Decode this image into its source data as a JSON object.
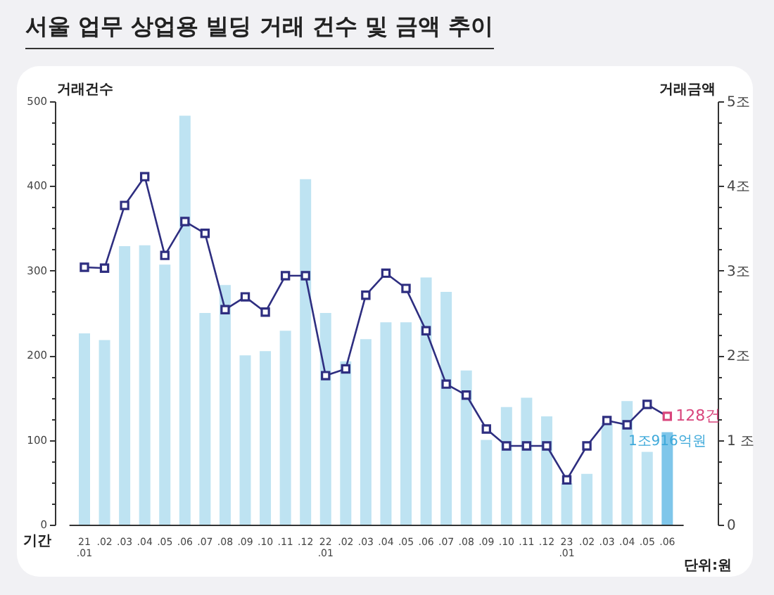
{
  "chart_data": {
    "type": "bar",
    "title": "서울 업무 상업용 빌딩 거래 건수 및 금액 추이",
    "xlabel": "기간",
    "ylabel": "거래건수",
    "y2label": "거래금액",
    "categories": [
      "21\n.01",
      ".02",
      ".03",
      ".04",
      ".05",
      ".06",
      ".07",
      ".08",
      ".09",
      ".10",
      ".11",
      ".12",
      "22\n.01",
      ".02",
      ".03",
      ".04",
      ".05",
      ".06",
      ".07",
      ".08",
      ".09",
      ".10",
      ".11",
      ".12",
      "23\n.01",
      ".02",
      ".03",
      ".04",
      ".05",
      ".06"
    ],
    "series": [
      {
        "axis": "y2",
        "colors": [
          "#bee3f2",
          "#bee3f2",
          "#bee3f2",
          "#bee3f2",
          "#bee3f2",
          "#bee3f2",
          "#bee3f2",
          "#bee3f2",
          "#bee3f2",
          "#bee3f2",
          "#bee3f2",
          "#bee3f2",
          "#bee3f2",
          "#bee3f2",
          "#bee3f2",
          "#bee3f2",
          "#bee3f2",
          "#bee3f2",
          "#bee3f2",
          "#bee3f2",
          "#bee3f2",
          "#bee3f2",
          "#bee3f2",
          "#bee3f2",
          "#bee3f2",
          "#bee3f2",
          "#bee3f2",
          "#bee3f2",
          "#bee3f2",
          "#7fc6ea"
        ],
        "values": [
          2.26,
          2.18,
          3.29,
          3.3,
          3.07,
          4.83,
          2.5,
          2.83,
          2.0,
          2.05,
          2.29,
          4.08,
          2.5,
          1.93,
          2.19,
          2.39,
          2.39,
          2.92,
          2.75,
          1.82,
          1.0,
          1.39,
          1.5,
          1.28,
          0.49,
          0.6,
          1.2,
          1.46,
          0.86,
          1.0916
        ],
        "value_labels": [
          null,
          null,
          null,
          null,
          null,
          null,
          null,
          null,
          null,
          null,
          null,
          null,
          null,
          null,
          null,
          null,
          null,
          null,
          null,
          null,
          null,
          null,
          null,
          null,
          null,
          null,
          null,
          null,
          null,
          "1조916억원"
        ]
      },
      {
        "type": "line",
        "color": "#2e2e80",
        "colors": [
          "#2e2e80",
          "#2e2e80",
          "#2e2e80",
          "#2e2e80",
          "#2e2e80",
          "#2e2e80",
          "#2e2e80",
          "#2e2e80",
          "#2e2e80",
          "#2e2e80",
          "#2e2e80",
          "#2e2e80",
          "#2e2e80",
          "#2e2e80",
          "#2e2e80",
          "#2e2e80",
          "#2e2e80",
          "#2e2e80",
          "#2e2e80",
          "#2e2e80",
          "#2e2e80",
          "#2e2e80",
          "#2e2e80",
          "#2e2e80",
          "#2e2e80",
          "#2e2e80",
          "#2e2e80",
          "#2e2e80",
          "#2e2e80",
          "#d9457c"
        ],
        "values": [
          304,
          303,
          377,
          411,
          318,
          358,
          344,
          254,
          269,
          251,
          294,
          294,
          176,
          184,
          271,
          297,
          279,
          229,
          166,
          153,
          113,
          93,
          93,
          93,
          53,
          93,
          123,
          118,
          142,
          128
        ],
        "value_labels": [
          null,
          null,
          null,
          null,
          null,
          null,
          null,
          null,
          null,
          null,
          null,
          null,
          null,
          null,
          null,
          null,
          null,
          null,
          null,
          null,
          null,
          null,
          null,
          null,
          null,
          null,
          null,
          null,
          null,
          "128건"
        ]
      }
    ],
    "ylim": [
      0,
      500
    ],
    "yticks": [
      0,
      {
        "value": 25,
        "label": null
      },
      {
        "value": 50,
        "label": null
      },
      {
        "value": 75,
        "label": null
      },
      100,
      {
        "value": 125,
        "label": null
      },
      {
        "value": 150,
        "label": null
      },
      {
        "value": 175,
        "label": null
      },
      200,
      {
        "value": 225,
        "label": null
      },
      {
        "value": 250,
        "label": null
      },
      {
        "value": 275,
        "label": null
      },
      300,
      {
        "value": 325,
        "label": null
      },
      {
        "value": 350,
        "label": null
      },
      {
        "value": 375,
        "label": null
      },
      400,
      {
        "value": 425,
        "label": null
      },
      {
        "value": 450,
        "label": null
      },
      {
        "value": 475,
        "label": null
      },
      500
    ],
    "y2lim": [
      0,
      5
    ],
    "y2ticks": [
      0,
      {
        "value": 0.25,
        "label": null
      },
      {
        "value": 0.5,
        "label": null
      },
      {
        "value": 0.75,
        "label": null
      },
      {
        "value": 1,
        "label": "1 조"
      },
      {
        "value": 1.25,
        "label": null
      },
      {
        "value": 1.5,
        "label": null
      },
      {
        "value": 1.75,
        "label": null
      },
      {
        "value": 2,
        "label": "2조"
      },
      {
        "value": 2.25,
        "label": null
      },
      {
        "value": 2.5,
        "label": null
      },
      {
        "value": 2.75,
        "label": null
      },
      {
        "value": 3,
        "label": "3조"
      },
      {
        "value": 3.25,
        "label": null
      },
      {
        "value": 3.5,
        "label": null
      },
      {
        "value": 3.75,
        "label": null
      },
      {
        "value": 4,
        "label": "4조"
      },
      {
        "value": 4.25,
        "label": null
      },
      {
        "value": 4.5,
        "label": null
      },
      {
        "value": 4.75,
        "label": null
      },
      {
        "value": 5,
        "label": "5조"
      }
    ],
    "marker": "square",
    "annotations": [
      "단위:원"
    ]
  }
}
